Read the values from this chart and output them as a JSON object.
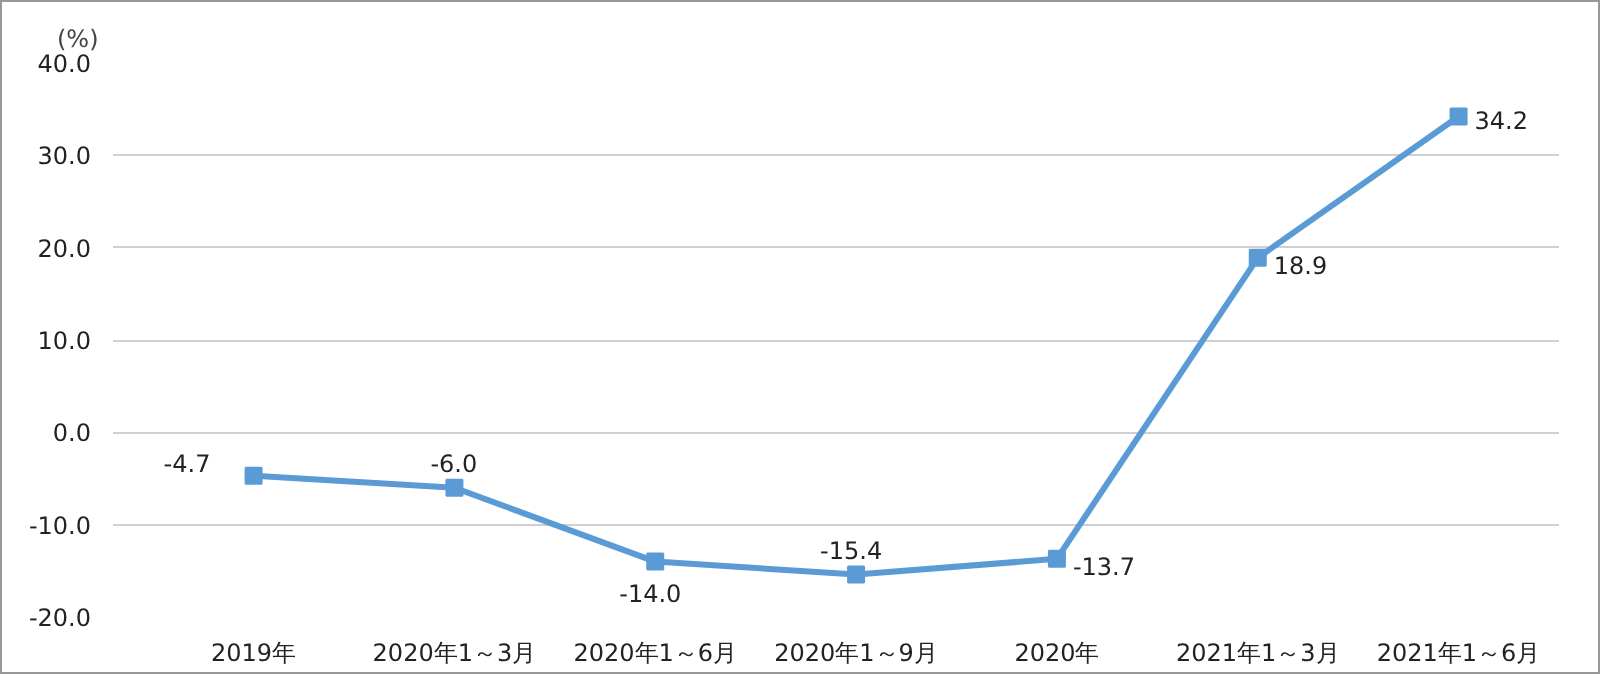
{
  "chart_data": {
    "type": "line",
    "ylabel": "(%)",
    "categories": [
      "2019年",
      "2020年1～3月",
      "2020年1～6月",
      "2020年1～9月",
      "2020年",
      "2021年1～3月",
      "2021年1～6月"
    ],
    "series": [
      {
        "color": "#5b9bd5",
        "values": [
          -4.7,
          -6.0,
          -14.0,
          -15.4,
          -13.7,
          18.9,
          34.2
        ],
        "value_labels": [
          "-4.7",
          "-6.0",
          "-14.0",
          "-15.4",
          "-13.7",
          "18.9",
          "34.2"
        ]
      }
    ],
    "ylim": [
      -20,
      40
    ],
    "yticks": [
      {
        "value": -20,
        "label": "-20.0"
      },
      {
        "value": -10,
        "label": "-10.0"
      },
      {
        "value": 0,
        "label": "0.0"
      },
      {
        "value": 10,
        "label": "10.0"
      },
      {
        "value": 20,
        "label": "20.0"
      },
      {
        "value": 30,
        "label": "30.0"
      },
      {
        "value": 40,
        "label": "40.0"
      }
    ],
    "grid": "y",
    "marker": "square",
    "line_style": "solid"
  }
}
